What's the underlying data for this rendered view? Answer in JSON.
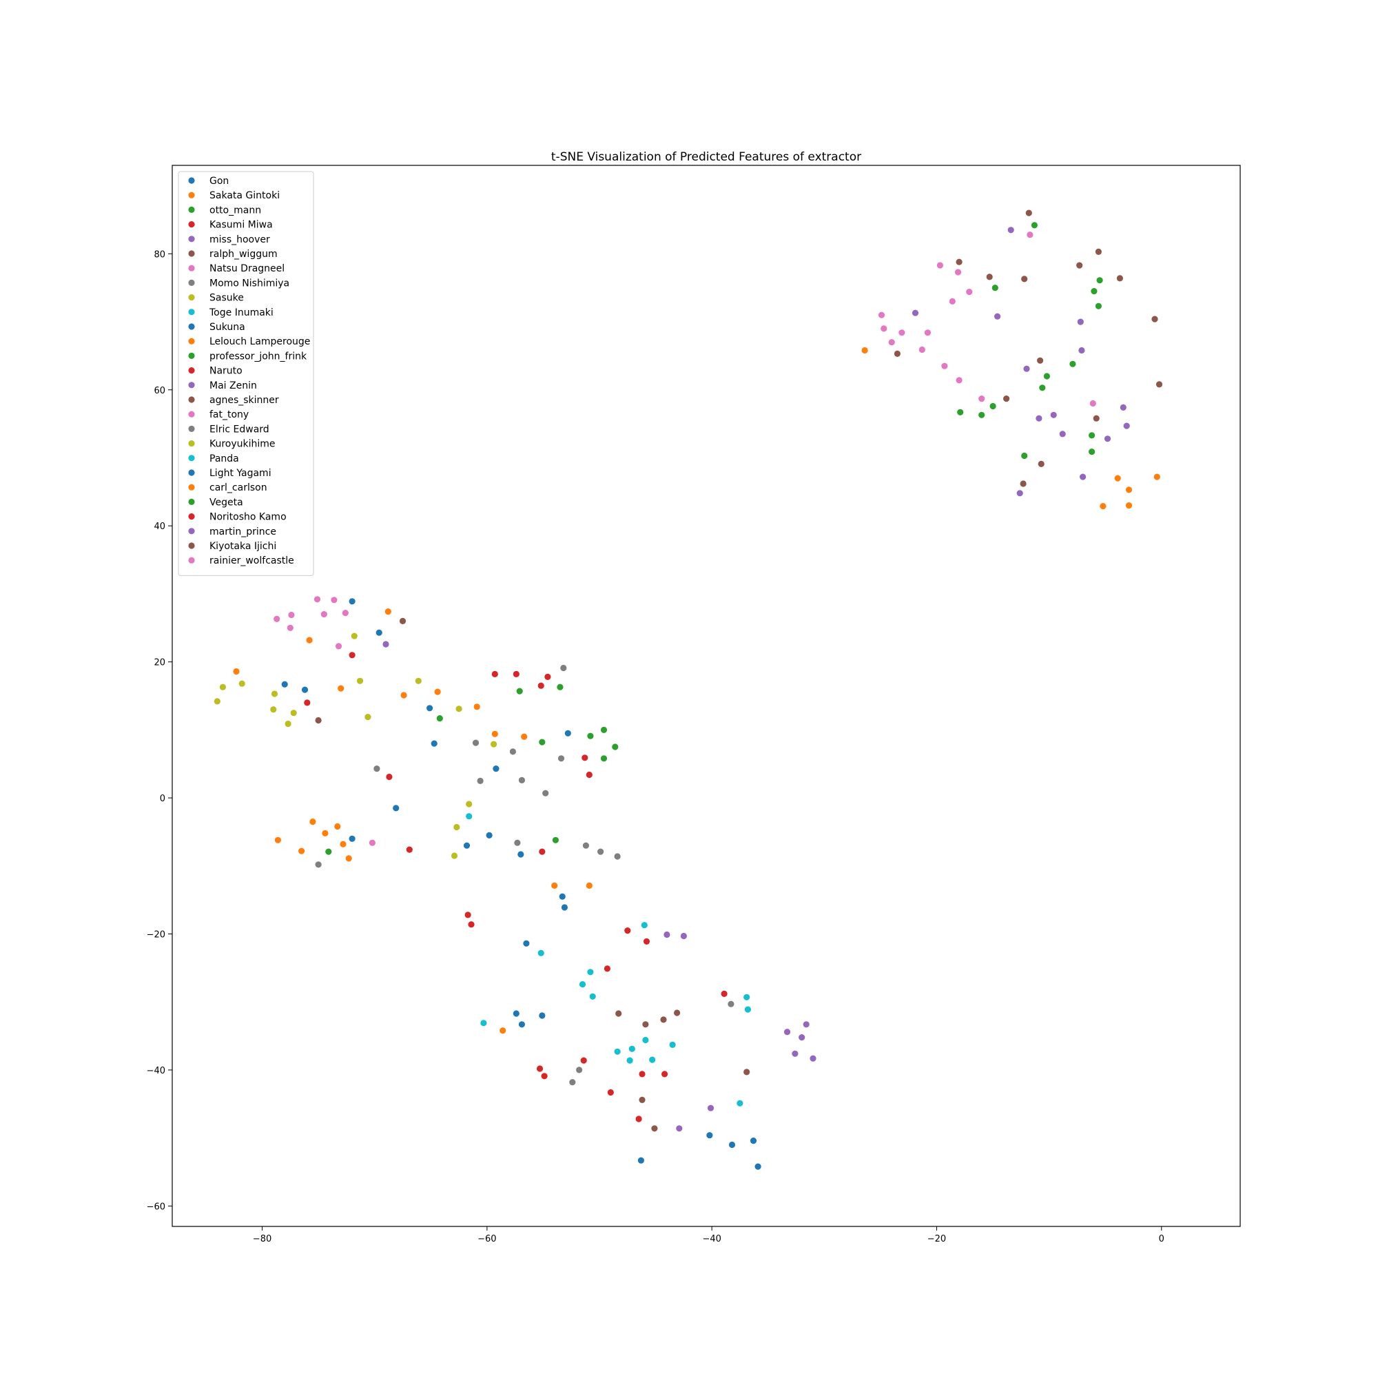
{
  "chart_data": {
    "type": "scatter",
    "title": "t-SNE Visualization of Predicted Features of extractor",
    "xlabel": "",
    "ylabel": "",
    "xlim": [
      -88,
      7
    ],
    "ylim": [
      -63,
      93
    ],
    "xticks": [
      -80,
      -60,
      -40,
      -20,
      0
    ],
    "yticks": [
      -60,
      -40,
      -20,
      0,
      20,
      40,
      60,
      80
    ],
    "grid": false,
    "legend_position": "upper-left",
    "series": [
      {
        "name": "Gon",
        "color": "#1f77b4",
        "points": [
          [
            -69.6,
            24.3
          ],
          [
            -64.7,
            8.0
          ],
          [
            -59.2,
            4.3
          ],
          [
            -53.1,
            -16.1
          ],
          [
            -56.9,
            -33.3
          ],
          [
            -46.3,
            -53.3
          ],
          [
            -40.2,
            -49.6
          ],
          [
            -35.9,
            -54.2
          ]
        ]
      },
      {
        "name": "Sakata Gintoki",
        "color": "#ff7f0e",
        "points": [
          [
            -75.8,
            23.2
          ],
          [
            -73.0,
            16.1
          ],
          [
            -67.4,
            15.1
          ],
          [
            -59.3,
            9.4
          ],
          [
            -54.0,
            -12.9
          ],
          [
            -58.6,
            -34.2
          ],
          [
            -26.4,
            65.8
          ],
          [
            -5.2,
            42.9
          ],
          [
            -2.9,
            43.0
          ]
        ]
      },
      {
        "name": "otto_mann",
        "color": "#2ca02c",
        "points": [
          [
            -64.2,
            11.7
          ],
          [
            -57.1,
            15.7
          ],
          [
            -49.6,
            10.0
          ],
          [
            -53.9,
            -6.2
          ],
          [
            -11.3,
            84.2
          ],
          [
            -5.5,
            76.1
          ],
          [
            -10.2,
            62.0
          ],
          [
            -17.9,
            56.7
          ]
        ]
      },
      {
        "name": "Kasumi Miwa",
        "color": "#d62728",
        "points": [
          [
            -76.0,
            14.0
          ],
          [
            -59.3,
            18.2
          ],
          [
            -51.3,
            5.9
          ],
          [
            -55.1,
            -7.9
          ],
          [
            -47.5,
            -19.5
          ],
          [
            -45.8,
            -21.1
          ],
          [
            -38.9,
            -28.8
          ],
          [
            -44.2,
            -40.6
          ]
        ]
      },
      {
        "name": "miss_hoover",
        "color": "#9467bd",
        "points": [
          [
            -69.0,
            22.6
          ],
          [
            -42.5,
            -20.3
          ],
          [
            -13.4,
            83.5
          ],
          [
            -21.9,
            71.3
          ],
          [
            -7.2,
            70.0
          ],
          [
            -14.6,
            70.8
          ],
          [
            -12.0,
            63.1
          ],
          [
            -3.4,
            57.4
          ]
        ]
      },
      {
        "name": "ralph_wiggum",
        "color": "#8c564b",
        "points": [
          [
            -67.5,
            26.0
          ],
          [
            -75.0,
            11.4
          ],
          [
            -48.3,
            -31.7
          ],
          [
            -45.9,
            -33.3
          ],
          [
            -11.8,
            86.0
          ],
          [
            -5.6,
            80.3
          ],
          [
            -7.3,
            78.3
          ],
          [
            -3.7,
            76.4
          ]
        ]
      },
      {
        "name": "Natsu Dragneel",
        "color": "#e377c2",
        "points": [
          [
            -75.1,
            29.2
          ],
          [
            -74.5,
            27.0
          ],
          [
            -70.2,
            -6.6
          ],
          [
            -19.7,
            78.3
          ],
          [
            -18.6,
            73.0
          ],
          [
            -17.1,
            74.4
          ],
          [
            -16.0,
            58.7
          ],
          [
            -6.1,
            58.0
          ]
        ]
      },
      {
        "name": "Momo Nishimiya",
        "color": "#7f7f7f",
        "points": [
          [
            -69.8,
            4.3
          ],
          [
            -61.0,
            8.1
          ],
          [
            -57.7,
            6.8
          ],
          [
            -53.2,
            19.1
          ],
          [
            -56.9,
            2.6
          ],
          [
            -57.3,
            -6.6
          ],
          [
            -51.2,
            -7.0
          ],
          [
            -49.9,
            -7.9
          ]
        ]
      },
      {
        "name": "Sasuke",
        "color": "#bcbd22",
        "points": [
          [
            -83.5,
            16.3
          ],
          [
            -81.8,
            16.8
          ],
          [
            -79.0,
            13.0
          ],
          [
            -77.2,
            12.5
          ],
          [
            -71.8,
            23.8
          ],
          [
            -71.3,
            17.2
          ],
          [
            -66.1,
            17.2
          ],
          [
            -62.5,
            13.1
          ]
        ]
      },
      {
        "name": "Toge Inumaki",
        "color": "#17becf",
        "points": [
          [
            -61.6,
            -2.7
          ],
          [
            -55.2,
            -22.8
          ],
          [
            -46.0,
            -18.7
          ],
          [
            -51.5,
            -27.4
          ],
          [
            -50.8,
            -25.6
          ],
          [
            -50.6,
            -29.2
          ],
          [
            -36.9,
            -29.3
          ],
          [
            -36.8,
            -31.1
          ]
        ]
      },
      {
        "name": "Sukuna",
        "color": "#1f77b4",
        "points": [
          [
            -72.0,
            28.9
          ],
          [
            -65.1,
            13.2
          ],
          [
            -52.8,
            9.5
          ],
          [
            -59.8,
            -5.5
          ],
          [
            -61.8,
            -7.0
          ],
          [
            -57.0,
            -8.3
          ],
          [
            -56.5,
            -21.4
          ],
          [
            -57.4,
            -31.7
          ]
        ]
      },
      {
        "name": "Lelouch Lamperouge",
        "color": "#ff7f0e",
        "points": [
          [
            -68.8,
            27.4
          ],
          [
            -64.4,
            15.6
          ],
          [
            -60.9,
            13.4
          ],
          [
            -56.7,
            9.0
          ],
          [
            -50.9,
            -12.9
          ],
          [
            -3.9,
            47.0
          ],
          [
            -2.9,
            45.3
          ],
          [
            -0.4,
            47.2
          ]
        ]
      },
      {
        "name": "professor_john_frink",
        "color": "#2ca02c",
        "points": [
          [
            -53.5,
            16.3
          ],
          [
            -55.1,
            8.2
          ],
          [
            -50.8,
            9.1
          ],
          [
            -48.6,
            7.5
          ],
          [
            -49.6,
            5.8
          ],
          [
            -14.8,
            75.0
          ],
          [
            -6.0,
            74.5
          ],
          [
            -5.6,
            72.3
          ]
        ]
      },
      {
        "name": "Naruto",
        "color": "#d62728",
        "points": [
          [
            -72.0,
            21.0
          ],
          [
            -57.4,
            18.2
          ],
          [
            -54.6,
            17.8
          ],
          [
            -55.2,
            16.5
          ],
          [
            -50.9,
            3.4
          ],
          [
            -68.7,
            3.1
          ],
          [
            -66.9,
            -7.6
          ],
          [
            -61.7,
            -17.2
          ]
        ]
      },
      {
        "name": "Mai Zenin",
        "color": "#9467bd",
        "points": [
          [
            -44.0,
            -20.1
          ],
          [
            -32.6,
            -37.6
          ],
          [
            -31.6,
            -33.3
          ],
          [
            -32.0,
            -35.2
          ],
          [
            -31.0,
            -38.3
          ],
          [
            -33.3,
            -34.4
          ],
          [
            -40.1,
            -45.6
          ],
          [
            -42.9,
            -48.6
          ]
        ]
      },
      {
        "name": "agnes_skinner",
        "color": "#8c564b",
        "points": [
          [
            -44.3,
            -32.6
          ],
          [
            -43.1,
            -31.6
          ],
          [
            -46.2,
            -44.4
          ],
          [
            -45.1,
            -48.6
          ],
          [
            -36.9,
            -40.3
          ],
          [
            -18.0,
            78.8
          ],
          [
            -15.3,
            76.6
          ],
          [
            -12.2,
            76.3
          ]
        ]
      },
      {
        "name": "fat_tony",
        "color": "#e377c2",
        "points": [
          [
            -78.7,
            26.3
          ],
          [
            -77.4,
            26.9
          ],
          [
            -77.5,
            25.0
          ],
          [
            -73.2,
            22.3
          ],
          [
            -73.6,
            29.1
          ],
          [
            -72.6,
            27.2
          ],
          [
            -24.9,
            71.0
          ],
          [
            -24.7,
            69.0
          ]
        ]
      },
      {
        "name": "Elric Edward",
        "color": "#7f7f7f",
        "points": [
          [
            -60.6,
            2.5
          ],
          [
            -54.8,
            0.7
          ],
          [
            -53.4,
            5.8
          ],
          [
            -48.4,
            -8.6
          ],
          [
            -75.0,
            -9.8
          ],
          [
            -51.8,
            -40.0
          ],
          [
            -52.4,
            -41.8
          ],
          [
            -38.3,
            -30.3
          ]
        ]
      },
      {
        "name": "Kuroyukihime",
        "color": "#bcbd22",
        "points": [
          [
            -84.0,
            14.2
          ],
          [
            -78.9,
            15.3
          ],
          [
            -77.7,
            10.9
          ],
          [
            -70.6,
            11.9
          ],
          [
            -59.4,
            7.9
          ],
          [
            -61.6,
            -0.9
          ],
          [
            -62.7,
            -4.3
          ],
          [
            -62.9,
            -8.5
          ]
        ]
      },
      {
        "name": "Panda",
        "color": "#17becf",
        "points": [
          [
            -60.3,
            -33.1
          ],
          [
            -48.4,
            -37.3
          ],
          [
            -47.1,
            -36.9
          ],
          [
            -45.9,
            -35.6
          ],
          [
            -43.5,
            -36.3
          ],
          [
            -45.3,
            -38.5
          ],
          [
            -47.3,
            -38.6
          ],
          [
            -37.5,
            -44.9
          ]
        ]
      },
      {
        "name": "Light Yagami",
        "color": "#1f77b4",
        "points": [
          [
            -78.0,
            16.7
          ],
          [
            -76.2,
            15.9
          ],
          [
            -68.1,
            -1.5
          ],
          [
            -72.0,
            -6.0
          ],
          [
            -53.3,
            -14.5
          ],
          [
            -55.1,
            -32.0
          ],
          [
            -36.3,
            -50.4
          ],
          [
            -38.2,
            -51.0
          ]
        ]
      },
      {
        "name": "carl_carlson",
        "color": "#ff7f0e",
        "points": [
          [
            -82.3,
            18.6
          ],
          [
            -78.6,
            -6.2
          ],
          [
            -76.5,
            -7.8
          ],
          [
            -75.5,
            -3.5
          ],
          [
            -74.4,
            -5.2
          ],
          [
            -73.3,
            -4.2
          ],
          [
            -72.8,
            -6.8
          ],
          [
            -72.3,
            -8.9
          ]
        ]
      },
      {
        "name": "Vegeta",
        "color": "#2ca02c",
        "points": [
          [
            -74.1,
            -7.9
          ],
          [
            -12.2,
            50.3
          ],
          [
            -6.2,
            53.3
          ],
          [
            -6.2,
            50.9
          ],
          [
            -7.9,
            63.8
          ],
          [
            -10.6,
            60.3
          ],
          [
            -15.0,
            57.6
          ],
          [
            -16.0,
            56.3
          ]
        ]
      },
      {
        "name": "Noritosho Kamo",
        "color": "#d62728",
        "points": [
          [
            -61.4,
            -18.6
          ],
          [
            -49.3,
            -25.1
          ],
          [
            -51.4,
            -38.6
          ],
          [
            -55.3,
            -39.8
          ],
          [
            -54.9,
            -40.9
          ],
          [
            -49.0,
            -43.3
          ],
          [
            -46.2,
            -40.6
          ],
          [
            -46.5,
            -47.2
          ]
        ]
      },
      {
        "name": "martin_prince",
        "color": "#9467bd",
        "points": [
          [
            -12.6,
            44.8
          ],
          [
            -7.0,
            47.2
          ],
          [
            -4.8,
            52.8
          ],
          [
            -3.1,
            54.7
          ],
          [
            -8.8,
            53.5
          ],
          [
            -9.6,
            56.3
          ],
          [
            -10.9,
            55.8
          ],
          [
            -7.1,
            65.8
          ]
        ]
      },
      {
        "name": "Kiyotaka Ijichi",
        "color": "#8c564b",
        "points": [
          [
            -12.3,
            46.2
          ],
          [
            -10.7,
            49.1
          ],
          [
            -13.8,
            58.7
          ],
          [
            -10.8,
            64.3
          ],
          [
            -23.5,
            65.3
          ],
          [
            -5.8,
            55.8
          ],
          [
            -0.2,
            60.8
          ],
          [
            -0.6,
            70.4
          ]
        ]
      },
      {
        "name": "rainier_wolfcastle",
        "color": "#e377c2",
        "points": [
          [
            -24.0,
            67.0
          ],
          [
            -23.1,
            68.4
          ],
          [
            -21.3,
            65.9
          ],
          [
            -20.8,
            68.4
          ],
          [
            -19.3,
            63.5
          ],
          [
            -18.0,
            61.4
          ],
          [
            -18.1,
            77.3
          ],
          [
            -11.7,
            82.8
          ]
        ]
      }
    ]
  }
}
